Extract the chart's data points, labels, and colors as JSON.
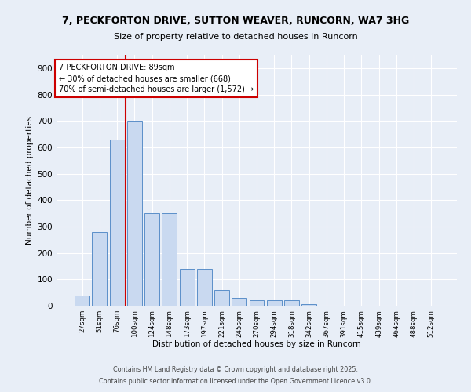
{
  "title_line1": "7, PECKFORTON DRIVE, SUTTON WEAVER, RUNCORN, WA7 3HG",
  "title_line2": "Size of property relative to detached houses in Runcorn",
  "xlabel": "Distribution of detached houses by size in Runcorn",
  "ylabel": "Number of detached properties",
  "categories": [
    "27sqm",
    "51sqm",
    "76sqm",
    "100sqm",
    "124sqm",
    "148sqm",
    "173sqm",
    "197sqm",
    "221sqm",
    "245sqm",
    "270sqm",
    "294sqm",
    "318sqm",
    "342sqm",
    "367sqm",
    "391sqm",
    "415sqm",
    "439sqm",
    "464sqm",
    "488sqm",
    "512sqm"
  ],
  "values": [
    40,
    280,
    630,
    700,
    350,
    350,
    140,
    140,
    60,
    30,
    20,
    20,
    20,
    5,
    0,
    0,
    0,
    0,
    0,
    0,
    0
  ],
  "bar_color": "#c9d9f0",
  "bar_edge_color": "#5b8fc9",
  "vline_x": 2.5,
  "vline_color": "#cc0000",
  "annotation_text": "7 PECKFORTON DRIVE: 89sqm\n← 30% of detached houses are smaller (668)\n70% of semi-detached houses are larger (1,572) →",
  "annotation_box_color": "#ffffff",
  "annotation_box_edge": "#cc0000",
  "ylim": [
    0,
    950
  ],
  "yticks": [
    0,
    100,
    200,
    300,
    400,
    500,
    600,
    700,
    800,
    900
  ],
  "background_color": "#e8eef7",
  "footer_line1": "Contains HM Land Registry data © Crown copyright and database right 2025.",
  "footer_line2": "Contains public sector information licensed under the Open Government Licence v3.0."
}
